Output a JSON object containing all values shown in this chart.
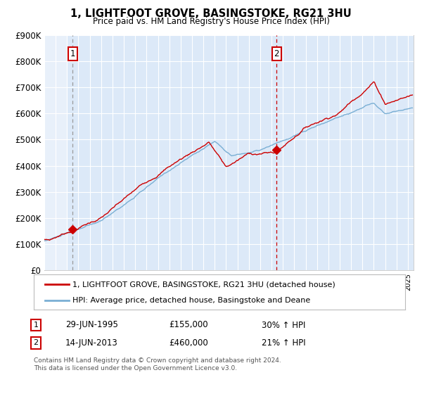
{
  "title1": "1, LIGHTFOOT GROVE, BASINGSTOKE, RG21 3HU",
  "title2": "Price paid vs. HM Land Registry's House Price Index (HPI)",
  "legend_label1": "1, LIGHTFOOT GROVE, BASINGSTOKE, RG21 3HU (detached house)",
  "legend_label2": "HPI: Average price, detached house, Basingstoke and Deane",
  "annotation1_date": "29-JUN-1995",
  "annotation1_price": "£155,000",
  "annotation1_hpi": "30% ↑ HPI",
  "annotation2_date": "14-JUN-2013",
  "annotation2_price": "£460,000",
  "annotation2_hpi": "21% ↑ HPI",
  "footer": "Contains HM Land Registry data © Crown copyright and database right 2024.\nThis data is licensed under the Open Government Licence v3.0.",
  "bg_color": "#dce9f8",
  "line1_color": "#cc0000",
  "line2_color": "#7aafd4",
  "marker_color": "#cc0000",
  "vline1_color": "#999999",
  "vline2_color": "#cc0000",
  "grid_color": "#ffffff",
  "ylim": [
    0,
    900000
  ],
  "yticks": [
    0,
    100000,
    200000,
    300000,
    400000,
    500000,
    600000,
    700000,
    800000,
    900000
  ],
  "ytick_labels": [
    "£0",
    "£100K",
    "£200K",
    "£300K",
    "£400K",
    "£500K",
    "£600K",
    "£700K",
    "£800K",
    "£900K"
  ],
  "sale1_x": 1995.49,
  "sale1_y": 155000,
  "sale2_x": 2013.45,
  "sale2_y": 460000,
  "xmin": 1993.0,
  "xmax": 2025.5,
  "hatch_end": 1995.0
}
